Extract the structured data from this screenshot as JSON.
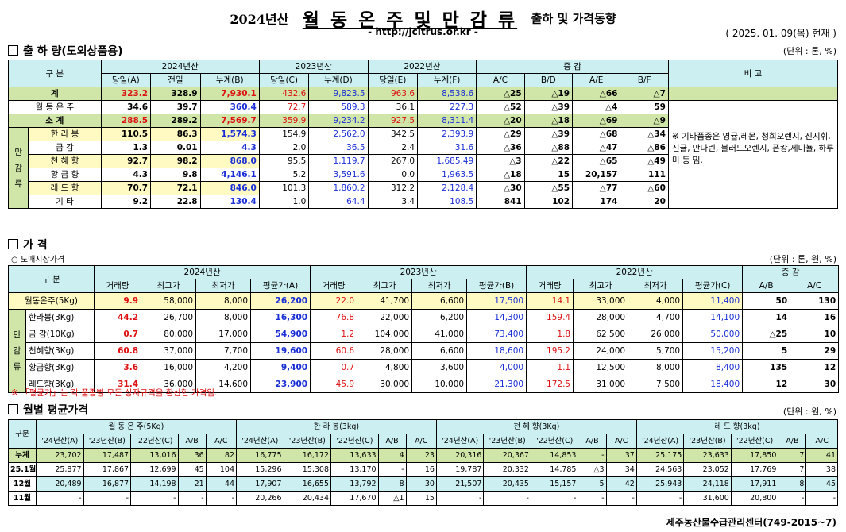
{
  "header": {
    "year_tag": "2024년산",
    "title": "월 동 온 주 및 만 감 류",
    "subtitle": "출하 및 가격동향",
    "url": "- http://jcitrus.or.kr -",
    "as_of": "( 2025. 01. 09(목) 현재 )"
  },
  "shipment": {
    "section_title": "출 하 량(도외상품용)",
    "unit": "(단위 : 톤, %)",
    "category_header": "구   분",
    "group_headers": [
      "2024년산",
      "2023년산",
      "2022년산",
      "증    감",
      "비 고"
    ],
    "sub_headers": [
      "당일(A)",
      "전일",
      "누계(B)",
      "당일(C)",
      "누계(D)",
      "당일(E)",
      "누계(F)",
      "A/C",
      "B/D",
      "A/E",
      "B/F"
    ],
    "side_label": "만 감 류",
    "rows": [
      {
        "label": "계",
        "v": [
          "323.2",
          "328.9",
          "7,930.1",
          "432.6",
          "9,823.5",
          "963.6",
          "8,538.6",
          "△25",
          "△19",
          "△66",
          "△7"
        ]
      },
      {
        "label": "월 동 온 주",
        "v": [
          "34.6",
          "39.7",
          "360.4",
          "72.7",
          "589.3",
          "36.1",
          "227.3",
          "△52",
          "△39",
          "△4",
          "59"
        ]
      },
      {
        "label": "소    계",
        "v": [
          "288.5",
          "289.2",
          "7,569.7",
          "359.9",
          "9,234.2",
          "927.5",
          "8,311.4",
          "△20",
          "△18",
          "△69",
          "△9"
        ]
      },
      {
        "label": "한 라 봉",
        "v": [
          "110.5",
          "86.3",
          "1,574.3",
          "154.9",
          "2,562.0",
          "342.5",
          "2,393.9",
          "△29",
          "△39",
          "△68",
          "△34"
        ]
      },
      {
        "label": "금    감",
        "v": [
          "1.3",
          "0.01",
          "4.3",
          "2.0",
          "36.5",
          "2.4",
          "31.6",
          "△36",
          "△88",
          "△47",
          "△86"
        ]
      },
      {
        "label": "천 혜 향",
        "v": [
          "92.7",
          "98.2",
          "868.0",
          "95.5",
          "1,119.7",
          "267.0",
          "1,685.49",
          "△3",
          "△22",
          "△65",
          "△49"
        ]
      },
      {
        "label": "황 금 향",
        "v": [
          "4.3",
          "9.8",
          "4,146.1",
          "5.2",
          "3,591.6",
          "0.0",
          "1,963.5",
          "△18",
          "15",
          "20,157",
          "111"
        ]
      },
      {
        "label": "레 드 향",
        "v": [
          "70.7",
          "72.1",
          "846.0",
          "101.3",
          "1,860.2",
          "312.2",
          "2,128.4",
          "△30",
          "△55",
          "△77",
          "△60"
        ]
      },
      {
        "label": "기    타",
        "v": [
          "9.2",
          "22.8",
          "130.4",
          "1.0",
          "64.4",
          "3.4",
          "108.5",
          "841",
          "102",
          "174",
          "20"
        ]
      }
    ],
    "note": "※ 기타품종은 영귤,레몬, 청희오렌지, 진지휘, 진귤, 만다린, 블러드오렌지, 폰캉,세미뇰, 하루미 등 임."
  },
  "price": {
    "section_title": "가    격",
    "sub_title": "○ 도매시장가격",
    "unit": "(단위 : 톤, 원, %)",
    "category_header": "구   분",
    "group_headers": [
      "2024년산",
      "2023년산",
      "2022년산",
      "증   감"
    ],
    "sub_headers": [
      "거래량",
      "최고가",
      "최저가",
      "평균가(A)",
      "거래량",
      "최고가",
      "최저가",
      "평균가(B)",
      "거래량",
      "최고가",
      "최저가",
      "평균가(C)",
      "A/B",
      "A/C"
    ],
    "side_label": "만 감 류",
    "rows": [
      {
        "label": "월동온주(5Kg)",
        "v": [
          "9.9",
          "58,000",
          "8,000",
          "26,200",
          "22.0",
          "41,700",
          "6,600",
          "17,500",
          "14.1",
          "33,000",
          "4,000",
          "11,400",
          "50",
          "130"
        ]
      },
      {
        "label": "한라봉(3Kg)",
        "v": [
          "44.2",
          "26,700",
          "8,000",
          "16,300",
          "76.8",
          "22,000",
          "6,200",
          "14,300",
          "159.4",
          "28,000",
          "4,700",
          "14,100",
          "14",
          "16"
        ]
      },
      {
        "label": "금 감(10Kg)",
        "v": [
          "0.7",
          "80,000",
          "17,000",
          "54,900",
          "1.2",
          "104,000",
          "41,000",
          "73,400",
          "1.8",
          "62,500",
          "26,000",
          "50,000",
          "△25",
          "10"
        ]
      },
      {
        "label": "천혜향(3Kg)",
        "v": [
          "60.8",
          "37,000",
          "7,700",
          "19,600",
          "60.6",
          "28,000",
          "6,600",
          "18,600",
          "195.2",
          "24,000",
          "5,700",
          "15,200",
          "5",
          "29"
        ]
      },
      {
        "label": "황금향(3Kg)",
        "v": [
          "3.6",
          "16,000",
          "4,200",
          "9,400",
          "0.7",
          "4,800",
          "3,600",
          "4,000",
          "1.1",
          "12,500",
          "8,000",
          "8,400",
          "135",
          "12"
        ]
      },
      {
        "label": "레드향(3Kg)",
        "v": [
          "31.4",
          "36,000",
          "14,600",
          "23,900",
          "45.9",
          "30,000",
          "10,000",
          "21,300",
          "172.5",
          "31,000",
          "7,500",
          "18,400",
          "12",
          "30"
        ]
      }
    ],
    "footnote": "※ 「평균가」는 각 품종별 모든 상자규격을 환산한 가격임."
  },
  "monthly": {
    "section_title": "월별 평균가격",
    "unit": "(단위 : 원, %)",
    "category_header": "구분",
    "group_headers": [
      "월 동 온 주(5Kg)",
      "한 라 봉(3kg)",
      "천 혜 향(3Kg)",
      "레 드 향(3kg)"
    ],
    "sub_headers": [
      "'24년산(A)",
      "'23년산(B)",
      "'22년산(C)",
      "A/B",
      "A/C"
    ],
    "rows": [
      {
        "label": "누계",
        "v": [
          "23,702",
          "17,487",
          "13,016",
          "36",
          "82",
          "16,775",
          "16,172",
          "13,633",
          "4",
          "23",
          "20,316",
          "20,367",
          "14,853",
          "-",
          "37",
          "25,175",
          "23,633",
          "17,850",
          "7",
          "41"
        ]
      },
      {
        "label": "25.1월",
        "v": [
          "25,877",
          "17,867",
          "12,699",
          "45",
          "104",
          "15,296",
          "15,308",
          "13,170",
          "-",
          "16",
          "19,787",
          "20,332",
          "14,785",
          "△3",
          "34",
          "24,563",
          "23,052",
          "17,769",
          "7",
          "38"
        ]
      },
      {
        "label": "12월",
        "v": [
          "20,489",
          "16,877",
          "14,198",
          "21",
          "44",
          "17,907",
          "16,655",
          "13,792",
          "8",
          "30",
          "21,507",
          "20,435",
          "15,157",
          "5",
          "42",
          "25,943",
          "24,118",
          "17,911",
          "8",
          "45"
        ]
      },
      {
        "label": "11월",
        "v": [
          "-",
          "-",
          "-",
          "-",
          "-",
          "20,266",
          "20,434",
          "17,670",
          "△1",
          "15",
          "-",
          "-",
          "-",
          "-",
          "-",
          "-",
          "31,600",
          "20,800",
          "-",
          "-"
        ]
      }
    ]
  },
  "footer": "제주농산물수급관리센터(749-2015~7)",
  "colors": {
    "header_bg": "#ccf0f2",
    "total_bg": "#cfe6a8",
    "highlight_bg": "#fff9c2",
    "red": "#d11111",
    "blue": "#1a2fd6"
  }
}
